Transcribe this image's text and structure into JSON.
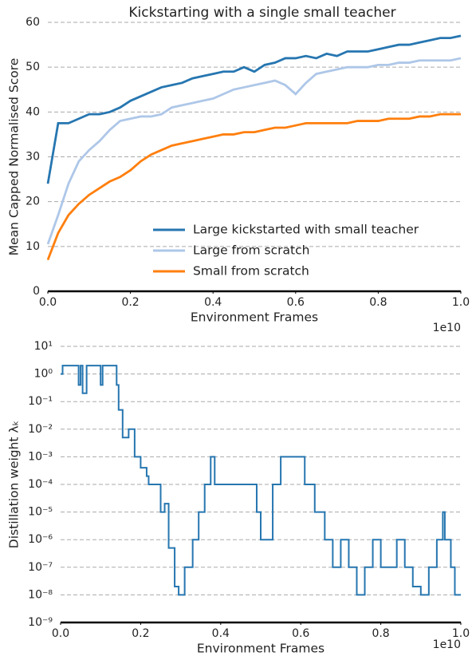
{
  "chart_data": [
    {
      "type": "line",
      "title": "Kickstarting with a single small teacher",
      "xlabel": "Environment Frames",
      "ylabel": "Mean Capped Normalised Score",
      "x_offset_label": "1e10",
      "x": [
        0,
        0.025,
        0.05,
        0.075,
        0.1,
        0.125,
        0.15,
        0.175,
        0.2,
        0.225,
        0.25,
        0.275,
        0.3,
        0.325,
        0.35,
        0.375,
        0.4,
        0.425,
        0.45,
        0.475,
        0.5,
        0.525,
        0.55,
        0.575,
        0.6,
        0.625,
        0.65,
        0.675,
        0.7,
        0.725,
        0.75,
        0.775,
        0.8,
        0.825,
        0.85,
        0.875,
        0.9,
        0.925,
        0.95,
        0.975,
        1.0
      ],
      "series": [
        {
          "name": "Large kickstarted with small teacher",
          "color": "#2676b0",
          "values": [
            24,
            37.5,
            37.5,
            38.5,
            39.5,
            39.5,
            40,
            41,
            42.5,
            43.5,
            44.5,
            45.5,
            46,
            46.5,
            47.5,
            48,
            48.5,
            49,
            49,
            50,
            49,
            50.5,
            51,
            52,
            52,
            52.5,
            52,
            53,
            52.5,
            53.5,
            53.5,
            53.5,
            54,
            54.5,
            55,
            55,
            55.5,
            56,
            56.5,
            56.5,
            57
          ]
        },
        {
          "name": "Large from scratch",
          "color": "#aec7e8",
          "values": [
            10.5,
            17,
            24,
            29,
            31.5,
            33.5,
            36,
            38,
            38.5,
            39,
            39,
            39.5,
            41,
            41.5,
            42,
            42.5,
            43,
            44,
            45,
            45.5,
            46,
            46.5,
            47,
            46,
            44,
            46.5,
            48.5,
            49,
            49.5,
            50,
            50,
            50,
            50.5,
            50.5,
            51,
            51,
            51.5,
            51.5,
            51.5,
            51.5,
            52
          ]
        },
        {
          "name": "Small from scratch",
          "color": "#ff7f0e",
          "values": [
            7,
            13,
            17,
            19.5,
            21.5,
            23,
            24.5,
            25.5,
            27,
            29,
            30.5,
            31.5,
            32.5,
            33,
            33.5,
            34,
            34.5,
            35,
            35,
            35.5,
            35.5,
            36,
            36.5,
            36.5,
            37,
            37.5,
            37.5,
            37.5,
            37.5,
            37.5,
            38,
            38,
            38,
            38.5,
            38.5,
            38.5,
            39,
            39,
            39.5,
            39.5,
            39.5
          ]
        }
      ],
      "xlim": [
        0,
        1
      ],
      "xticks": [
        {
          "value": 0,
          "label": "0.0"
        },
        0.2,
        0.4,
        0.6,
        0.8,
        {
          "value": 1,
          "label": "1.0"
        }
      ],
      "ylim": [
        0,
        60
      ],
      "yticks": [
        0,
        10,
        20,
        30,
        40,
        50,
        60
      ],
      "grid": true,
      "legend": "lower right"
    },
    {
      "type": "line",
      "step": true,
      "log_y": true,
      "xlabel": "Environment Frames",
      "ylabel": "Distillation weight λₖ",
      "x_offset_label": "1e10",
      "x": [
        0,
        0.005,
        0.045,
        0.05,
        0.055,
        0.065,
        0.1,
        0.105,
        0.14,
        0.145,
        0.155,
        0.17,
        0.185,
        0.2,
        0.215,
        0.22,
        0.25,
        0.26,
        0.27,
        0.285,
        0.295,
        0.31,
        0.33,
        0.345,
        0.36,
        0.375,
        0.385,
        0.49,
        0.5,
        0.53,
        0.55,
        0.6,
        0.61,
        0.635,
        0.66,
        0.68,
        0.7,
        0.72,
        0.74,
        0.76,
        0.78,
        0.8,
        0.84,
        0.86,
        0.88,
        0.9,
        0.92,
        0.94,
        0.955,
        0.96,
        0.975,
        0.985,
        1.0
      ],
      "series": [
        {
          "name": "Distillation weight",
          "color": "#2676b0",
          "values": [
            1,
            2,
            0.4,
            2,
            0.2,
            2,
            0.4,
            2,
            0.4,
            0.05,
            0.005,
            0.01,
            0.001,
            0.0004,
            0.0002,
            0.0001,
            1e-05,
            2e-05,
            5e-07,
            2e-08,
            1e-08,
            1e-07,
            1e-06,
            1e-05,
            0.0001,
            0.001,
            0.0001,
            1e-05,
            1e-06,
            0.0001,
            0.001,
            0.001,
            0.0001,
            1e-05,
            1e-06,
            1e-07,
            1e-06,
            1e-07,
            1e-08,
            1e-07,
            1e-06,
            1e-07,
            1e-06,
            1e-07,
            2e-08,
            1e-08,
            1e-07,
            1e-06,
            1e-05,
            1e-06,
            1e-07,
            1e-08,
            1e-08
          ]
        }
      ],
      "xlim": [
        0,
        1
      ],
      "xticks": [
        {
          "value": 0,
          "label": "0.0"
        },
        0.2,
        0.4,
        0.6,
        0.8,
        {
          "value": 1,
          "label": "1.0"
        }
      ],
      "ylim": [
        1e-09,
        10
      ],
      "yticks": [
        {
          "value": 10,
          "label": "10¹"
        },
        {
          "value": 1,
          "label": "10⁰"
        },
        {
          "value": 0.1,
          "label": "10⁻¹"
        },
        {
          "value": 0.01,
          "label": "10⁻²"
        },
        {
          "value": 0.001,
          "label": "10⁻³"
        },
        {
          "value": 0.0001,
          "label": "10⁻⁴"
        },
        {
          "value": 1e-05,
          "label": "10⁻⁵"
        },
        {
          "value": 1e-06,
          "label": "10⁻⁶"
        },
        {
          "value": 1e-07,
          "label": "10⁻⁷"
        },
        {
          "value": 1e-08,
          "label": "10⁻⁸"
        },
        {
          "value": 1e-09,
          "label": "10⁻⁹"
        }
      ],
      "grid": true
    }
  ]
}
